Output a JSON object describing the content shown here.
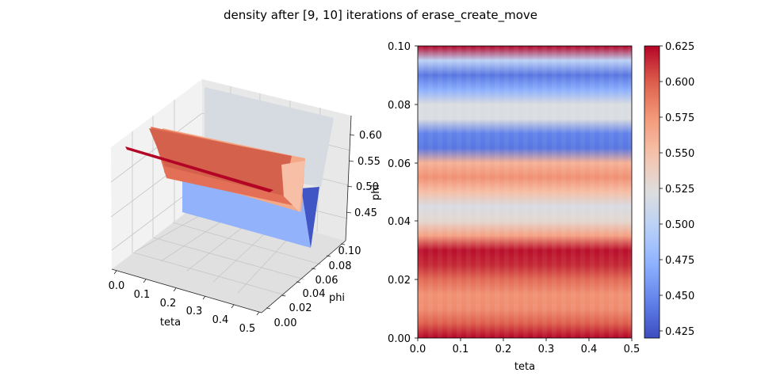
{
  "figure": {
    "title": "density after [9, 10] iterations of erase_create_move"
  },
  "chart_data": [
    {
      "type": "surface3d",
      "xlabel": "teta",
      "ylabel": "phi",
      "zlabel": "",
      "x_ticks": [
        "0.0",
        "0.1",
        "0.2",
        "0.3",
        "0.4",
        "0.5"
      ],
      "y_ticks": [
        "0.00",
        "0.02",
        "0.04",
        "0.06",
        "0.08",
        "0.10"
      ],
      "z_ticks": [
        "0.45",
        "0.50",
        "0.55",
        "0.60"
      ],
      "colormap": "coolwarm"
    },
    {
      "type": "heatmap",
      "xlabel": "teta",
      "ylabel": "phi",
      "xlim": [
        0.0,
        0.5
      ],
      "ylim": [
        0.0,
        0.1
      ],
      "x_ticks": [
        "0.0",
        "0.1",
        "0.2",
        "0.3",
        "0.4",
        "0.5"
      ],
      "y_ticks": [
        "0.00",
        "0.02",
        "0.04",
        "0.06",
        "0.08",
        "0.10"
      ],
      "colormap": "coolwarm",
      "colorbar": {
        "range": [
          0.42,
          0.625
        ],
        "ticks": [
          "0.425",
          "0.450",
          "0.475",
          "0.500",
          "0.525",
          "0.550",
          "0.575",
          "0.600",
          "0.625"
        ]
      },
      "phi": [
        0.0,
        0.005,
        0.01,
        0.015,
        0.02,
        0.025,
        0.03,
        0.035,
        0.04,
        0.045,
        0.05,
        0.055,
        0.06,
        0.065,
        0.07,
        0.075,
        0.08,
        0.085,
        0.09,
        0.095,
        0.1
      ],
      "density": [
        0.625,
        0.6,
        0.58,
        0.578,
        0.595,
        0.615,
        0.622,
        0.57,
        0.53,
        0.518,
        0.552,
        0.578,
        0.56,
        0.44,
        0.445,
        0.52,
        0.52,
        0.47,
        0.44,
        0.5,
        0.625
      ]
    }
  ]
}
